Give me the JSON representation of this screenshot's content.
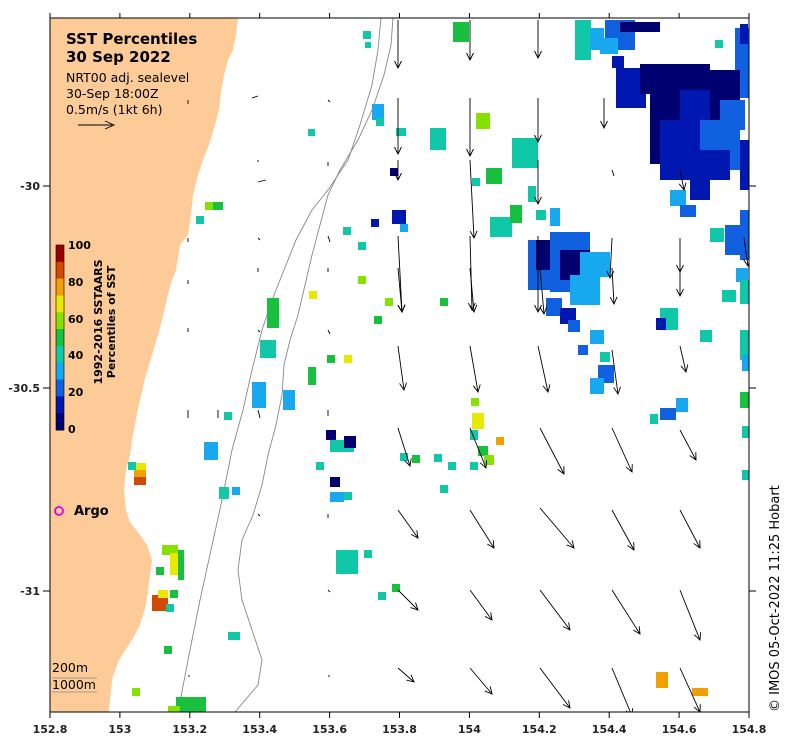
{
  "title": {
    "line1": "SST Percentiles",
    "line2": "30 Sep 2022"
  },
  "subtitle": {
    "line1": "NRT00 adj. sealevel",
    "line2": "30-Sep 18:00Z",
    "line3": "0.5m/s (1kt 6h)"
  },
  "colorbar": {
    "title_line1": "1992-2016 SSTAARS",
    "title_line2": "Percentiles of SST",
    "ticks": [
      "100",
      "80",
      "60",
      "40",
      "20",
      "0"
    ],
    "colors": [
      "#9b0000",
      "#d24a00",
      "#f0a000",
      "#e8e800",
      "#86e000",
      "#18c040",
      "#10c8a8",
      "#18a8f0",
      "#1060e0",
      "#0018b0",
      "#000070"
    ]
  },
  "argo_label": "Argo",
  "depth_labels": [
    "200m",
    "1000m"
  ],
  "credit": "© IMOS 05-Oct-2022 11:25 Hobart",
  "axes": {
    "x_ticks": [
      "152.8",
      "153",
      "153.2",
      "153.4",
      "153.6",
      "153.8",
      "154",
      "154.2",
      "154.4",
      "154.6",
      "154.8"
    ],
    "y_ticks": [
      "-30",
      "-30.5",
      "-31"
    ]
  },
  "colors": {
    "land": "#fdcb98",
    "contour": "#888888",
    "arrow": "#000000"
  }
}
